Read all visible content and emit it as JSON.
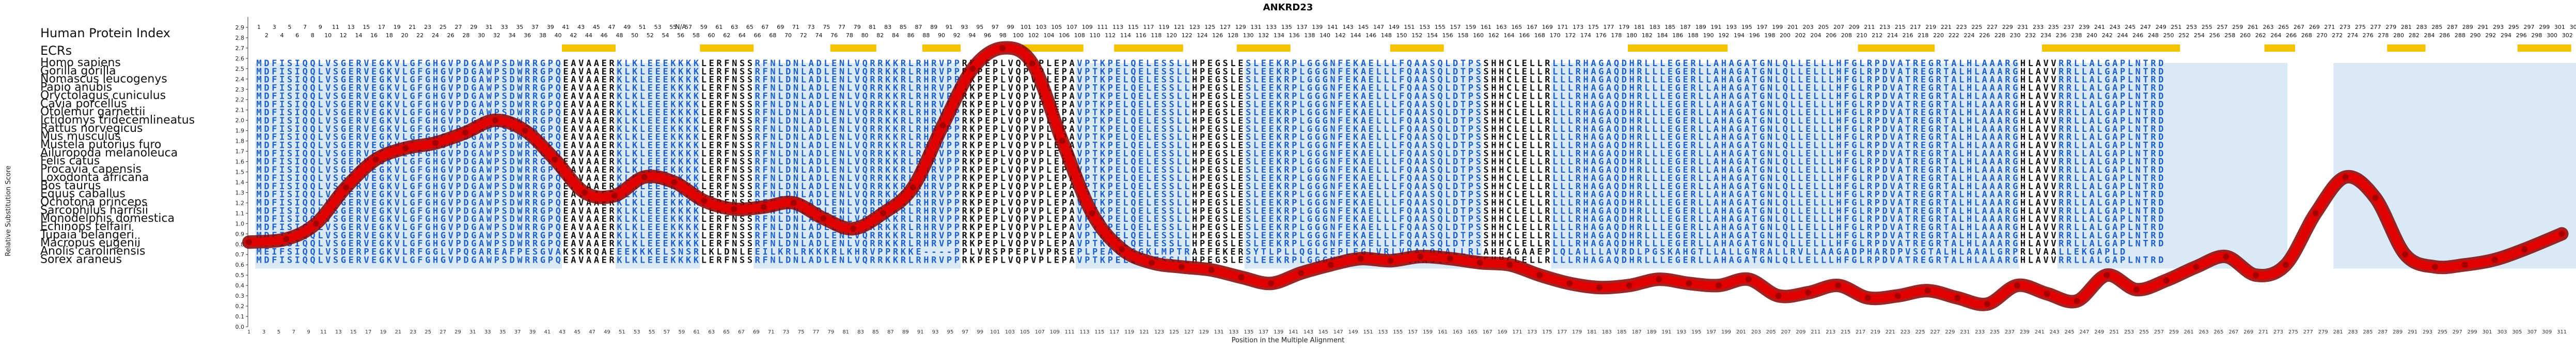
{
  "title": "ANKRD23",
  "panel_label": "Human Protein Index",
  "ecrs_label": "ECRs",
  "y_axis_label": "Relative Substitution Score",
  "x_axis_label": "Position in the Multiple Alignment",
  "gap_marker_label": "N/A",
  "colors": {
    "conserved_text": "#1f5fc8",
    "variable_text": "#101010",
    "conserved_band": "#bcd7ef",
    "ecr_bar": "#f3c200",
    "curve_outer": "#8b0000",
    "curve_inner": "#e00000",
    "axis": "#333333"
  },
  "species": [
    "Homo sapiens",
    "Gorilla gorilla",
    "Nomascus leucogenys",
    "Papio anubis",
    "Oryctolagus cuniculus",
    "Cavia porcellus",
    "Otolemur garnettii",
    "Ictidomys tridecemlineatus",
    "Rattus norvegicus",
    "Mus musculus",
    "Mustela putorius furo",
    "Ailuropoda melanoleuca",
    "Felis catus",
    "Procavia capensis",
    "Loxodonta africana",
    "Bos taurus",
    "Equus caballus",
    "Ochotona princeps",
    "Sarcophilus harrisii",
    "Monodelphis domestica",
    "Echinops telfairi",
    "Tupaia belangeri",
    "Macropus eugenii",
    "Anolis carolinensis",
    "Sorex araneus"
  ],
  "sequences": [
    "MDFISIQQLVSGERVEGKVLGFGHGVPDGAWPSDWRRGPQEAVAAERKLKLEEEKKKKLERFNSSRFNLDNLADLENLVQRRKKRLRHRVPPRKPEPLVQPVPLEPAVPTKPELQELESSLLHPEGSLESLEEKRPLGGGNFEKAELLLFQAASQLDTPSSHHCLELLRLLLRHAGAQDHRLLLEGERLLAHAGATGNLQLLELLLHFGLRPDVATREGRTALHLAAARGHLAVVRRLLALGAPLNTRD",
    "MDFISIQQLVSGERVEGKVLGFGHGVPDGAWPSDWRRGPQEAVAAERKLKLEEEKKKKLERFNSSRFNLDNLADLENLVQRRKKRLRHRVPPRKPEPLVQPVPLEPAVPTKPELQELESSLLHPEGSLESLEEKRPLGGGNFEKAELLLFQAASQLDTPSSHHCLELLRLLLRHAGAQDHRLLLEGERLLAHAGATGNLQLLELLLHFGLRPDVATREGRTALHLAAARGHLAVVRRLLALGAPLNTRD",
    "MDFISIQQLVSGERVEGKVLGFGHGVPDGAWPSDWRRGPQEAVAAERKLKLEEEKKKKLERFNSSRFNLDNLADLENLVQRRKKRLRHRVPPRKPEPLVQPVPLEPAVPTKPELQELESSLLHPEGSLESLEEKRPLGGGNFEKAELLLFQAASQLDTPSSHHCLELLRLLLRHAGAQDHRLLLEGERLLAHAGATGNLQLLELLLHFGLRPDVATREGRTALHLAAARGHLAVVRRLLALGAPLNTRD",
    "MDFISIQQLVSGERVEGKVLGFGHGVPDGAWPSDWRRGPQEAVAAERKLKLEEEKKKKLERFNSSRFNLDNLADLENLVQRRKKRLRHRVPPRKPEPLVQPVPLEPAVPTKPELQELESSLLHPEGSLESLEEKRPLGGGNFEKAELLLFQAASQLDTPSSHHCLELLRLLLRHAGAQDHRLLLEGERLLAHAGATGNLQLLELLLHFGLRPDVATREGRTALHLAAARGHLAVVRRLLALGAPLNTRD",
    "MDFISIQQLVSGERVEGKVLGFGHGVPDGAWPSDWRRGPQEAVAAERKLKLEEEKKKKLERFNSSRFNLDNLADLENLVQRRKKRLRHRVPPRKPEPLVQPVPLEPAVPTKPELQELESSLLHPEGSLESLEEKRPLGGGNFEKAELLLFQAASQLDTPSSHHCLELLRLLLRHAGAQDHRLLLEGERLLAHAGATGNLQLLELLLHFGLRPDVATREGRTALHLAAARGHLAVVRRLLALGAPLNTRD",
    "MDFISIQQLVSGERVEGKVLGFGHGVPDGAWPSDWRRGPQEAVAAERKLKLEEEKKKKLERFNSSRFNLDNLADLENLVQRRKKRLRHRVPPRKPEPLVQPVPLEPAVPTKPELQELESSLLHPEGSLESLEEKRPLGGGNFEKAELLLFQAASQLDTPSSHHCLELLRLLLRHAGAQDHRLLLEGERLLAHAGATGNLQLLELLLHFGLRPDVATREGRTALHLAAARGHLAVVRRLLALGAPLNTRD",
    "MDFISIQQLVSGERVEGKVLGFGHGVPDGAWPSDWRRGPQEAVAAERKLKLEEEKKKKLERFNSSRFNLDNLADLENLVQRRKKRLRHRVPPRKPEPLVQPVPLEPAVPTKPELQELESSLLHPEGSLESLEEKRPLGGGNFEKAELLLFQAASQLDTPSSHHCLELLRLLLRHAGAQDHRLLLEGERLLAHAGATGNLQLLELLLHFGLRPDVATREGRTALHLAAARGHLAVVRRLLALGAPLNTRD",
    "MDFISIQQLVSGERVEGKVLGFGHGVPDGAWPSDWRRGPQEAVAAERKLKLEEEKKKKLERFNSSRFNLDNLADLENLVQRRKKRLRHRVPPRKPEPLVQPVPLEPAVPTKPELQELESSLLHPEGSLESLEEKRPLGGGNFEKAELLLFQAASQLDTPSSHHCLELLRLLLRHAGAQDHRLLLEGERLLAHAGATGNLQLLELLLHFGLRPDVATREGRTALHLAAARGHLAVVRRLLALGAPLNTRD",
    "MDFISIQQLVSGERVEGKVLGFGHGVPDGAWPSDWRRGPQEAVAAERKLKLEEEKKKKLERFNSSRFNLDNLADLENLVQRRKKRLRHRVPPRKPEPLVQPVPLEPAVPTKPELQELESSLLHPEGSLESLEEKRPLGGGNFEKAELLLFQAASQLDTPSSHHCLELLRLLLRHAGAQDHRLLLEGERLLAHAGATGNLQLLELLLHFGLRPDVATREGRTALHLAAARGHLAVVRRLLALGAPLNTRD",
    "MDFISIQQLVSGERVEGKVLGFGHGVPDGAWPSDWRRGPQEAVAAERKLKLEEEKKKKLERFNSSRFNLDNLADLENLVQRRKKRLRHRVPPRKPEPLVQPVPLEPAVPTKPELQELESSLLHPEGSLESLEEKRPLGGGNFEKAELLLFQAASQLDTPSSHHCLELLRLLLRHAGAQDHRLLLEGERLLAHAGATGNLQLLELLLHFGLRPDVATREGRTALHLAAARGHLAVVRRLLALGAPLNTRD",
    "MDFISIQQLVSGERVEGKVLGFGHGVPDGAWPSDWRRGPQEAVAAERKLKLEEEKKKKLERFNSSRFNLDNLADLENLVQRRKKRLRHRVPPRKPEPLVQPVPLEPAVPTKPELQELESSLLHPEGSLESLEEKRPLGGGNFEKAELLLFQAASQLDTPSSHHCLELLRLLLRHAGAQDHRLLLEGERLLAHAGATGNLQLLELLLHFGLRPDVATREGRTALHLAAARGHLAVVRRLLALGAPLNTRD",
    "MDFISIQQLVSGERVEGKVLGFGHGVPDGAWPSDWRRGPQEAVAAERKLKLEEEKKKKLERFNSSRFNLDNLADLENLVQRRKKRLRHRVPPRKPEPLVQPVPLEPAVPTKPELQELESSLLHPEGSLESLEEKRPLGGGNFEKAELLLFQAASQLDTPSSHHCLELLRLLLRHAGAQDHRLLLEGERLLAHAGATGNLQLLELLLHFGLRPDVATREGRTALHLAAARGHLAVVRRLLALGAPLNTRD",
    "MDFISIQQLVSGERVEGKVLGFGHGVPDGAWPSDWRRGPQEAVAAERKLKLEEEKKKKLERFNSSRFNLDNLADLENLVQRRKKRLRHRVPPRKPEPLVQPVPLEPAVPTKPELQELESSLLHPEGSLESLEEKRPLGGGNFEKAELLLFQAASQLDTPSSHHCLELLRLLLRHAGAQDHRLLLEGERLLAHAGATGNLQLLELLLHFGLRPDVATREGRTALHLAAARGHLAVVRRLLALGAPLNTRD",
    "MDFISIQQLVSGERVEGKVLGFGHGVPDGAWPSDWRRGPQEAVAAERKLKLEEEKKKKLERFNSSRFNLDNLADLENLVQRRKKRLRHRVPPRKPEPLVQPVPLEPAVPTKPELQELESSLLHPEGSLESLEEKRPLGGGNFEKAELLLFQAASQLDTPSSHHCLELLRLLLRHAGAQDHRLLLEGERLLAHAGATGNLQLLELLLHFGLRPDVATREGRTALHLAAARGHLAVVRRLLALGAPLNTRD",
    "MDFISIQQLVSGERVEGKVLGFGHGVPDGAWPSDWRRGPQEAVAAERKLKLEEEKKKKLERFNSSRFNLDNLADLENLVQRRKKRLRHRVPPRKPEPLVQPVPLEPAVPTKPELQELESSLLHPEGSLESLEEKRPLGGGNFEKAELLLFQAASQLDTPSSHHCLELLRLLLRHAGAQDHRLLLEGERLLAHAGATGNLQLLELLLHFGLRPDVATREGRTALHLAAARGHLAVVRRLLALGAPLNTRD",
    "MDFISIQQLVSGERVEGKVLGFGHGVPDGAWPSDWRRGPQEAVAAERKLKLEEEKKKKLERFNSSRFNLDNLADLENLVQRRKKRLRHRVPPRKPEPLVQPVPLEPAVPTKPELQELESSLLHPEGSLESLEEKRPLGGGNFEKAELLLFQAASQLDTPSSHHCLELLRLLLRHAGAQDHRLLLEGERLLAHAGATGNLQLLELLLHFGLRPDVATREGRTALHLAAARGHLAVVRRLLALGAPLNTRD",
    "MDFISIQQLVSGERVEGKVLGFGHGVPDGAWPSDWRRGPQEAVAAERKLKLEEEKKKKLERFNSSRFNLDNLADLENLVQRRKKRLRHRVPPRKPEPLVQPVPLEPAVPTKPELQELESSLLHPEGSLESLEEKRPLGGGNFEKAELLLFQAASQLDTPSSHHCLELLRLLLRHAGAQDHRLLLEGERLLAHAGATGNLQLLELLLHFGLRPDVATREGRTALHLAAARGHLAVVRRLLALGAPLNTRD",
    "MDFISIQQLVSGERVEGKVLGFGHGVPDGAWPSDWRRGPQEAVAAERKLKLEEEKKKKLERFNSSRFNLDNLADLENLVQRRKKRLRHRVPPRKPEPLVQPVPLEPAVPTKPELQELESSLLHPEGSLESLEEKRPLGGGNFEKAELLLFQAASQLDTPSSHHCLELLRLLLRHAGAQDHRLLLEGERLLAHAGATGNLQLLELLLHFGLRPDVATREGRTALHLAAARGHLAVVRRLLALGAPLNTRD",
    "MDFISIQQLVSGERVEGKVLGFGHGVPDGAWPSDWRRGPQEAVAAERKLKLEEEKKKKLERFNSSRFNLDNLADLENLVQRRKKRLRHRVPPRKPEPLVQPVPLEPAVPTKPELQELESSLLHPEGSLESLEEKRPLGGGNFEKAELLLFQAASQLDTPSSHHCLELLRLLLRHAGAQDHRLLLEGERLLAHAGATGNLQLLELLLHFGLRPDVATREGRTALHLAAARGHLAVVRRLLALGAPLNTRD",
    "MDFISIQQLVSGERVEGKVLGFGHGVPDGAWPSDWRRGPQEAVAAERKLKLEEEKKKKLERFNSSRFNLDNLADLENLVQRRKKRLRHRVPPRKPEPLVQPVPLEPAVPTKPELQELESSLLHPEGSLESLEEKRPLGGGNFEKAELLLFQAASQLDTPSSHHCLELLRLLLRHAGAQDHRLLLEGERLLAHAGATGNLQLLELLLHFGLRPDVATREGRTALHLAAARGHLAVVRRLLALGAPLNTRD",
    "MDFISIQQLVSGERVEGKVLGFGHGVPDGAWPSDWRRGPQEAVAAERKLKLEEEKKKKLERFNSSRFNLDNLADLENLVQRRKKRLRHRVPPRKPEPLVQPVPLEPAVPTKPELQELESSLLHPEGSLESLEEKRPLGGGNFEKAELLLFQAASQLDTPSSHHCLELLRLLLRHAGAQDHRLLLEGERLLAHAGATGNLQLLELLLHFGLRPDVATREGRTALHLAAARGHLAVVRRLLALGAPLNTRD",
    "MDFISIQQLVSGERVEGKVLGFGHGVPDGAWPSDWRRGPQEAVAAERKLKLEEEKKKKLERFNSSRFNLDNLADLENLVQRRKKRLRHRVPPRKPEPLVQPVPLEPAVPTKPELQELESSLLHPEGSLESLEEKRPLGGGNFEKAELLLFQAASQLDTPSSHHCLELLRLLLRHAGAQDHRLLLEGERLLAHAGATGNLQLLELLLHFGLRPDVATREGRTALHLAAARGHLAVVRRLLALGAPLNTRD",
    "MDFISIQQLVSGERVEGKVLGFGHGVPDGAWPSDWRRGPQEAVAAERKLKLEEEKKKKLERFNSSRFNLDNLADLENLVQRRKKRLRHRVPPRKPEPLVQPVPLEPAVPTKPELQELESSLLHPEGSLESLEEKRPLGGGNFEKAELLLFQAASQLDTPSSHHCLELLRLLLRHAGAQDHRLLLEGERLLAHAGATGNLQLLELLLHFGLRPDVATREGRTALHLAAARGHLAVVRRLLALGAPLNTRD",
    "MEIFSIQQLVSDERPEGKVLRFGGLVPQGAREAFPESGVAKSKRQAEEEKKKELSNSRLKLDNLEEILKRLRKKKRLKHRVPPRKKE----PPLVRSPPEPLVPRSEPLPEAGEGGKLMPTRAEFEKERSYTLPLLQGLCEPLEGLVRLVPALQRALLRLAHEAGAAEPLQLALLLAVRDLPGSKAHGTLLALLGNRALLRVLLAAGADPHARDPVSGTALHLAAALGRPRLVAALLEKGAPLD",
    "MDFISIQQLVSGERVEGKVLGFGHGVPDGAWPSDWRRGPQEAVAAERKLKLEEEKKKKLERFNSSRFNLDNLADLENLVQRRKKRLRHRVPPRKPEPLVQPVPLEPAVPTKPELQELESSLLHPEGSLESLEEKRPLGGGNFEKAELLLFQAASQLDTPSSHHCLELLRLLLRHAGAQDHRLLLEGERLLAHAGATGNLQLLELLLHFGLRPDVATREGRTALHLAAARGHLAVVRRLLALGAPLNTRD"
  ],
  "conserved_positions": [
    [
      1,
      40
    ],
    [
      48,
      58
    ],
    [
      66,
      73
    ],
    [
      74,
      92
    ],
    [
      108,
      122
    ],
    [
      130,
      160
    ],
    [
      170,
      230
    ],
    [
      236,
      265
    ],
    [
      272,
      304
    ]
  ],
  "ecr_regions": [
    [
      41,
      47
    ],
    [
      59,
      65
    ],
    [
      76,
      81
    ],
    [
      88,
      92
    ],
    [
      101,
      108
    ],
    [
      113,
      121
    ],
    [
      129,
      135
    ],
    [
      149,
      155
    ],
    [
      180,
      192
    ],
    [
      210,
      219
    ],
    [
      234,
      251
    ],
    [
      263,
      266
    ],
    [
      279,
      283
    ],
    [
      296,
      302
    ]
  ],
  "human_index_top": [
    1,
    3,
    5,
    7,
    9,
    11,
    13,
    15,
    17,
    19,
    21,
    23,
    25,
    27,
    29,
    31,
    33,
    35,
    37,
    39,
    41,
    43,
    45,
    47,
    49,
    51,
    53,
    55,
    57,
    59,
    61,
    63,
    65,
    67,
    69,
    71,
    73,
    75,
    77,
    79,
    81,
    83,
    85,
    87,
    89,
    91,
    93,
    95,
    97,
    99,
    101,
    103,
    105,
    107,
    109,
    111,
    113,
    115,
    117,
    119,
    121,
    123,
    125,
    127,
    129,
    131,
    133,
    135,
    137,
    139,
    141,
    143,
    145,
    147,
    149,
    151,
    153,
    155,
    157,
    159,
    161,
    163,
    165,
    167,
    169,
    171,
    173,
    175,
    177,
    179,
    181,
    183,
    185,
    187,
    189,
    191,
    193,
    195,
    197,
    199,
    201,
    203,
    205,
    207,
    209,
    211,
    213,
    215,
    217,
    219,
    221,
    223,
    225,
    227,
    229,
    231,
    233,
    235,
    237,
    239,
    241,
    243,
    245,
    247,
    249,
    251,
    253,
    255,
    257,
    259,
    261,
    263,
    265,
    267,
    269,
    271,
    273,
    275,
    277,
    279,
    281,
    283,
    285,
    287,
    289,
    291,
    293,
    295,
    297,
    299,
    301,
    303
  ],
  "human_index_bottom": [
    2,
    4,
    6,
    8,
    10,
    12,
    14,
    16,
    18,
    20,
    22,
    24,
    26,
    28,
    30,
    32,
    34,
    36,
    38,
    40,
    42,
    44,
    46,
    48,
    50,
    52,
    54,
    56,
    58,
    60,
    62,
    64,
    66,
    68,
    70,
    72,
    74,
    76,
    78,
    80,
    82,
    84,
    86,
    88,
    90,
    92,
    94,
    96,
    98,
    100,
    102,
    104,
    106,
    108,
    110,
    112,
    114,
    116,
    118,
    120,
    122,
    124,
    126,
    128,
    130,
    132,
    134,
    136,
    138,
    140,
    142,
    144,
    146,
    148,
    150,
    152,
    154,
    156,
    158,
    160,
    162,
    164,
    166,
    168,
    170,
    172,
    174,
    176,
    178,
    180,
    182,
    184,
    186,
    188,
    190,
    192,
    194,
    196,
    198,
    200,
    202,
    204,
    206,
    208,
    210,
    212,
    214,
    216,
    218,
    220,
    222,
    224,
    226,
    228,
    230,
    232,
    234,
    236,
    238,
    240,
    242,
    244,
    246,
    248,
    250,
    252,
    254,
    256,
    258,
    260,
    262,
    264,
    266,
    268,
    270,
    272,
    274,
    276,
    278,
    280,
    282,
    284,
    286,
    288,
    290,
    292,
    294,
    296,
    298,
    300,
    302,
    304
  ],
  "chart_data": {
    "type": "line",
    "title": "ANKRD23",
    "xlabel": "Position in the Multiple Alignment",
    "ylabel": "Relative Substitution Score",
    "xlim": [
      1,
      312
    ],
    "ylim": [
      0,
      3.0
    ],
    "yticks": [
      0,
      0.1,
      0.2,
      0.3,
      0.4,
      0.5,
      0.6,
      0.7,
      0.8,
      0.9,
      1.0,
      1.1,
      1.2,
      1.3,
      1.4,
      1.5,
      1.6,
      1.7,
      1.8,
      1.9,
      2.0,
      2.1,
      2.2,
      2.3,
      2.4,
      2.5,
      2.6,
      2.7,
      2.8,
      2.9
    ],
    "xticks_start": 1,
    "xticks_end": 311,
    "xticks_step": 2,
    "grid": false,
    "series": [
      {
        "x": [
          1,
          6,
          10,
          14,
          18,
          22,
          26,
          30,
          34,
          38,
          42,
          46,
          50,
          54,
          58,
          62,
          66,
          70,
          74,
          78,
          82,
          86,
          90,
          94,
          98,
          102,
          106,
          110,
          114,
          118,
          122,
          126,
          130,
          134,
          138,
          142,
          146,
          150,
          154,
          158,
          162,
          166,
          170,
          174,
          178,
          182,
          186,
          190,
          194,
          198,
          202,
          206,
          210,
          214,
          218,
          222,
          226,
          230,
          234,
          238,
          242,
          246,
          250,
          254,
          258,
          262,
          266,
          270,
          274,
          278,
          282,
          286,
          290,
          294,
          298,
          302,
          306,
          311
        ],
        "values": [
          0.82,
          0.85,
          1.0,
          1.35,
          1.62,
          1.73,
          1.78,
          1.88,
          2.0,
          1.9,
          1.62,
          1.3,
          1.27,
          1.45,
          1.4,
          1.22,
          1.14,
          1.16,
          1.2,
          1.05,
          0.95,
          1.1,
          1.35,
          1.95,
          2.5,
          2.7,
          2.55,
          1.8,
          1.1,
          0.75,
          0.62,
          0.58,
          0.55,
          0.48,
          0.42,
          0.52,
          0.6,
          0.66,
          0.64,
          0.68,
          0.66,
          0.62,
          0.6,
          0.5,
          0.42,
          0.38,
          0.4,
          0.46,
          0.42,
          0.4,
          0.46,
          0.3,
          0.33,
          0.4,
          0.28,
          0.3,
          0.35,
          0.28,
          0.22,
          0.4,
          0.32,
          0.25,
          0.5,
          0.36,
          0.45,
          0.58,
          0.68,
          0.5,
          0.6,
          1.1,
          1.45,
          1.25,
          0.7,
          0.58,
          0.6,
          0.65,
          0.75,
          0.9
        ]
      }
    ]
  }
}
